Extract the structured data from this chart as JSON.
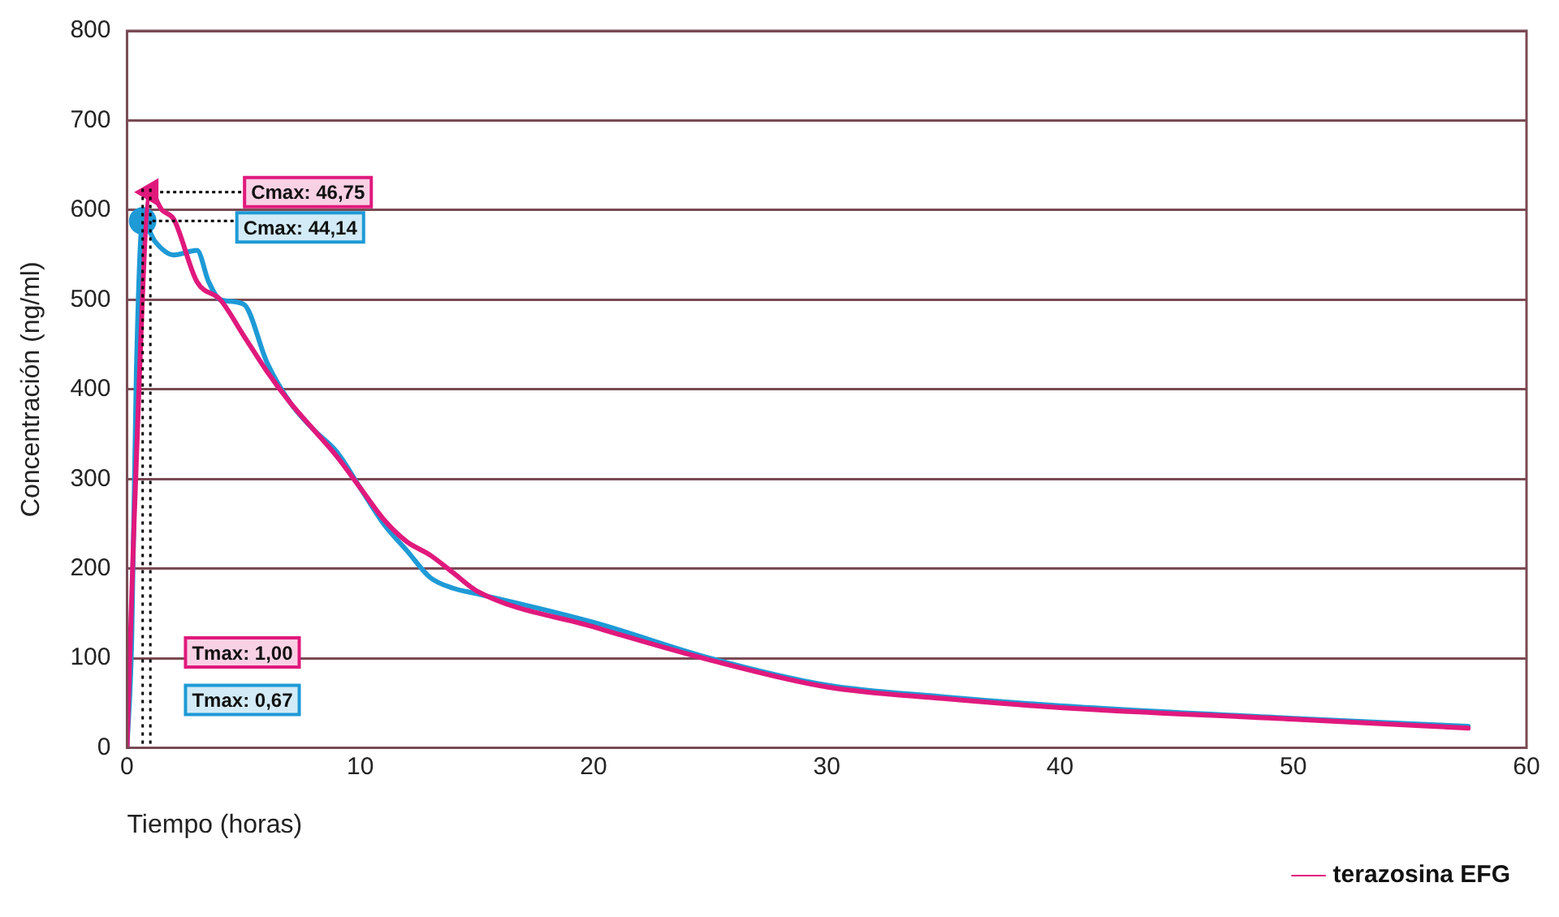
{
  "chart_data": {
    "type": "line",
    "xlabel": "Tiempo (horas)",
    "ylabel": "Concentración (ng/ml)",
    "xlim": [
      0,
      60
    ],
    "xticks": [
      0,
      10,
      20,
      30,
      40,
      50,
      60
    ],
    "ylim": [
      0,
      800
    ],
    "yticks": [
      0,
      100,
      200,
      300,
      400,
      500,
      600,
      700,
      800
    ],
    "grid": "y",
    "legend": "bottom right",
    "line_style": "solid",
    "series": [
      {
        "name": "terazosina EFG",
        "color": "#e0197d",
        "x": [
          0,
          0.3,
          1,
          1.5,
          2,
          3,
          4,
          5,
          6,
          7,
          8,
          9,
          10,
          11,
          12,
          13,
          14,
          15,
          20,
          25,
          30,
          35,
          40,
          50,
          57.5
        ],
        "values": [
          0,
          250,
          620,
          600,
          590,
          520,
          500,
          460,
          420,
          385,
          355,
          325,
          290,
          255,
          230,
          215,
          195,
          175,
          135,
          98,
          68,
          55,
          45,
          32,
          22
        ]
      },
      {
        "type": "scatter",
        "color": "#e0197d",
        "marker": "triangle",
        "x": [
          1
        ],
        "values": [
          620
        ]
      },
      {
        "type": "scatter",
        "color": "#1e9ad6",
        "marker": "circle",
        "x": [
          0.67
        ],
        "values": [
          588
        ]
      },
      {
        "color": "#1e9ad6",
        "x": [
          0,
          0.2,
          0.4,
          0.67,
          1.2,
          2,
          3,
          3.5,
          4,
          5,
          6,
          7,
          8,
          9,
          10,
          11,
          12,
          13,
          14,
          15,
          20,
          25,
          30,
          35,
          40,
          50,
          57.5
        ],
        "values": [
          0,
          120,
          420,
          588,
          565,
          550,
          555,
          520,
          500,
          495,
          430,
          385,
          355,
          330,
          290,
          250,
          220,
          190,
          178,
          172,
          140,
          100,
          70,
          57,
          47,
          33,
          24
        ]
      }
    ],
    "annotations": [
      {
        "text": "Cmax: 46,75",
        "x": 1,
        "y": 620
      },
      {
        "text": "Cmax: 44,14",
        "x": 0.67,
        "y": 588
      },
      "Tmax: 1,00",
      "Tmax: 0,67"
    ],
    "ref_lines": [
      {
        "axis": "x",
        "value": 1,
        "color": "#000000",
        "line_style": "dotted"
      },
      {
        "axis": "x",
        "value": 0.67,
        "color": "#000000",
        "line_style": "dotted"
      }
    ]
  }
}
